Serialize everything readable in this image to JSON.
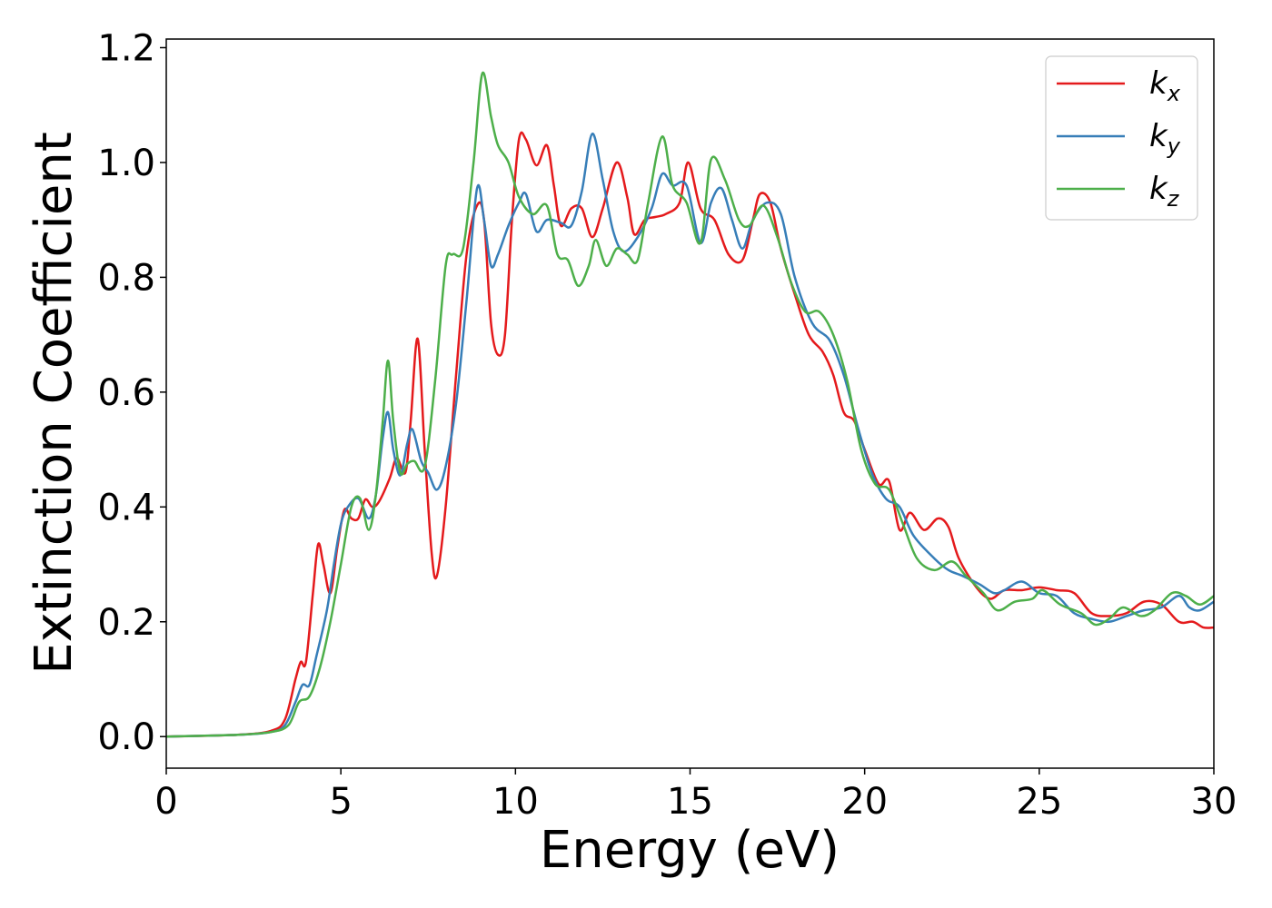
{
  "chart_data": {
    "type": "line",
    "title": "",
    "xlabel": "Energy (eV)",
    "ylabel": "Extinction Coefficient",
    "xlim": [
      0,
      30
    ],
    "ylim": [
      -0.055,
      1.215
    ],
    "xticks": [
      0,
      5,
      10,
      15,
      20,
      25,
      30
    ],
    "yticks": [
      0.0,
      0.2,
      0.4,
      0.6,
      0.8,
      1.0,
      1.2
    ],
    "xtick_labels": [
      "0",
      "5",
      "10",
      "15",
      "20",
      "25",
      "30"
    ],
    "ytick_labels": [
      "0.0",
      "0.2",
      "0.4",
      "0.6",
      "0.8",
      "1.0",
      "1.2"
    ],
    "grid": false,
    "legend_position": "top-right",
    "series": [
      {
        "name": "k_x",
        "legend_main": "k",
        "legend_sub": "x",
        "color": "#e41a1c",
        "points": [
          [
            0,
            0
          ],
          [
            2,
            0.003
          ],
          [
            3,
            0.01
          ],
          [
            3.4,
            0.03
          ],
          [
            3.7,
            0.1
          ],
          [
            3.85,
            0.13
          ],
          [
            4.0,
            0.13
          ],
          [
            4.2,
            0.25
          ],
          [
            4.35,
            0.335
          ],
          [
            4.5,
            0.3
          ],
          [
            4.7,
            0.25
          ],
          [
            4.9,
            0.33
          ],
          [
            5.1,
            0.395
          ],
          [
            5.3,
            0.38
          ],
          [
            5.5,
            0.38
          ],
          [
            5.7,
            0.413
          ],
          [
            5.9,
            0.4
          ],
          [
            6.1,
            0.41
          ],
          [
            6.4,
            0.45
          ],
          [
            6.6,
            0.485
          ],
          [
            6.85,
            0.46
          ],
          [
            7.0,
            0.55
          ],
          [
            7.2,
            0.693
          ],
          [
            7.4,
            0.5
          ],
          [
            7.6,
            0.32
          ],
          [
            7.75,
            0.28
          ],
          [
            8.0,
            0.4
          ],
          [
            8.3,
            0.63
          ],
          [
            8.6,
            0.84
          ],
          [
            8.9,
            0.925
          ],
          [
            9.1,
            0.9
          ],
          [
            9.3,
            0.72
          ],
          [
            9.5,
            0.665
          ],
          [
            9.7,
            0.7
          ],
          [
            9.9,
            0.9
          ],
          [
            10.1,
            1.04
          ],
          [
            10.3,
            1.04
          ],
          [
            10.6,
            0.995
          ],
          [
            10.9,
            1.03
          ],
          [
            11.1,
            0.96
          ],
          [
            11.3,
            0.89
          ],
          [
            11.6,
            0.92
          ],
          [
            11.9,
            0.92
          ],
          [
            12.2,
            0.87
          ],
          [
            12.5,
            0.92
          ],
          [
            12.9,
            1.0
          ],
          [
            13.2,
            0.94
          ],
          [
            13.4,
            0.875
          ],
          [
            13.7,
            0.9
          ],
          [
            14.0,
            0.905
          ],
          [
            14.3,
            0.91
          ],
          [
            14.7,
            0.93
          ],
          [
            14.95,
            1.0
          ],
          [
            15.3,
            0.92
          ],
          [
            15.7,
            0.9
          ],
          [
            16.1,
            0.84
          ],
          [
            16.5,
            0.83
          ],
          [
            16.8,
            0.9
          ],
          [
            17.0,
            0.945
          ],
          [
            17.3,
            0.93
          ],
          [
            17.6,
            0.85
          ],
          [
            18.0,
            0.77
          ],
          [
            18.4,
            0.7
          ],
          [
            18.8,
            0.67
          ],
          [
            19.1,
            0.63
          ],
          [
            19.4,
            0.565
          ],
          [
            19.7,
            0.55
          ],
          [
            20.0,
            0.5
          ],
          [
            20.4,
            0.44
          ],
          [
            20.7,
            0.445
          ],
          [
            21.0,
            0.36
          ],
          [
            21.3,
            0.39
          ],
          [
            21.7,
            0.36
          ],
          [
            22.1,
            0.38
          ],
          [
            22.4,
            0.365
          ],
          [
            22.7,
            0.31
          ],
          [
            23.2,
            0.26
          ],
          [
            23.6,
            0.24
          ],
          [
            24.0,
            0.255
          ],
          [
            24.5,
            0.255
          ],
          [
            25.0,
            0.26
          ],
          [
            25.5,
            0.255
          ],
          [
            26.0,
            0.25
          ],
          [
            26.5,
            0.215
          ],
          [
            27.0,
            0.21
          ],
          [
            27.5,
            0.215
          ],
          [
            28.0,
            0.235
          ],
          [
            28.5,
            0.23
          ],
          [
            29.0,
            0.2
          ],
          [
            29.4,
            0.2
          ],
          [
            29.7,
            0.19
          ],
          [
            30,
            0.19
          ]
        ]
      },
      {
        "name": "k_y",
        "legend_main": "k",
        "legend_sub": "y",
        "color": "#377eb8",
        "points": [
          [
            0,
            0
          ],
          [
            2,
            0.003
          ],
          [
            3,
            0.008
          ],
          [
            3.4,
            0.02
          ],
          [
            3.7,
            0.06
          ],
          [
            3.9,
            0.09
          ],
          [
            4.1,
            0.09
          ],
          [
            4.3,
            0.14
          ],
          [
            4.6,
            0.22
          ],
          [
            4.8,
            0.3
          ],
          [
            5.0,
            0.37
          ],
          [
            5.2,
            0.4
          ],
          [
            5.5,
            0.415
          ],
          [
            5.8,
            0.38
          ],
          [
            6.0,
            0.42
          ],
          [
            6.2,
            0.52
          ],
          [
            6.35,
            0.565
          ],
          [
            6.5,
            0.5
          ],
          [
            6.7,
            0.455
          ],
          [
            6.9,
            0.51
          ],
          [
            7.05,
            0.535
          ],
          [
            7.3,
            0.48
          ],
          [
            7.5,
            0.46
          ],
          [
            7.75,
            0.43
          ],
          [
            8.0,
            0.47
          ],
          [
            8.3,
            0.58
          ],
          [
            8.6,
            0.76
          ],
          [
            8.9,
            0.955
          ],
          [
            9.1,
            0.9
          ],
          [
            9.3,
            0.82
          ],
          [
            9.5,
            0.84
          ],
          [
            9.8,
            0.89
          ],
          [
            10.1,
            0.93
          ],
          [
            10.3,
            0.945
          ],
          [
            10.6,
            0.88
          ],
          [
            10.9,
            0.9
          ],
          [
            11.3,
            0.895
          ],
          [
            11.6,
            0.89
          ],
          [
            11.9,
            0.95
          ],
          [
            12.2,
            1.05
          ],
          [
            12.5,
            0.97
          ],
          [
            12.8,
            0.88
          ],
          [
            13.1,
            0.845
          ],
          [
            13.5,
            0.87
          ],
          [
            13.9,
            0.92
          ],
          [
            14.2,
            0.98
          ],
          [
            14.5,
            0.96
          ],
          [
            14.9,
            0.96
          ],
          [
            15.3,
            0.86
          ],
          [
            15.6,
            0.93
          ],
          [
            15.9,
            0.955
          ],
          [
            16.2,
            0.9
          ],
          [
            16.5,
            0.85
          ],
          [
            16.8,
            0.9
          ],
          [
            17.2,
            0.93
          ],
          [
            17.6,
            0.91
          ],
          [
            18.0,
            0.8
          ],
          [
            18.5,
            0.72
          ],
          [
            19.0,
            0.69
          ],
          [
            19.4,
            0.63
          ],
          [
            19.8,
            0.54
          ],
          [
            20.2,
            0.46
          ],
          [
            20.6,
            0.415
          ],
          [
            21.0,
            0.4
          ],
          [
            21.4,
            0.35
          ],
          [
            22.0,
            0.31
          ],
          [
            22.4,
            0.29
          ],
          [
            22.8,
            0.28
          ],
          [
            23.3,
            0.265
          ],
          [
            23.7,
            0.25
          ],
          [
            24.0,
            0.255
          ],
          [
            24.5,
            0.27
          ],
          [
            25.0,
            0.25
          ],
          [
            25.5,
            0.245
          ],
          [
            26.0,
            0.215
          ],
          [
            26.5,
            0.205
          ],
          [
            27.0,
            0.2
          ],
          [
            27.5,
            0.21
          ],
          [
            28.0,
            0.22
          ],
          [
            28.5,
            0.225
          ],
          [
            29.0,
            0.245
          ],
          [
            29.3,
            0.225
          ],
          [
            29.6,
            0.22
          ],
          [
            30,
            0.235
          ]
        ]
      },
      {
        "name": "k_z",
        "legend_main": "k",
        "legend_sub": "z",
        "color": "#4daf4a",
        "points": [
          [
            0,
            0
          ],
          [
            2,
            0.003
          ],
          [
            3,
            0.008
          ],
          [
            3.5,
            0.02
          ],
          [
            3.8,
            0.06
          ],
          [
            4.1,
            0.07
          ],
          [
            4.4,
            0.12
          ],
          [
            4.7,
            0.2
          ],
          [
            5.0,
            0.3
          ],
          [
            5.3,
            0.4
          ],
          [
            5.55,
            0.415
          ],
          [
            5.8,
            0.36
          ],
          [
            6.0,
            0.42
          ],
          [
            6.2,
            0.55
          ],
          [
            6.35,
            0.655
          ],
          [
            6.5,
            0.55
          ],
          [
            6.7,
            0.46
          ],
          [
            6.9,
            0.475
          ],
          [
            7.1,
            0.48
          ],
          [
            7.4,
            0.47
          ],
          [
            7.7,
            0.62
          ],
          [
            8.0,
            0.82
          ],
          [
            8.2,
            0.84
          ],
          [
            8.5,
            0.85
          ],
          [
            8.8,
            1.0
          ],
          [
            9.05,
            1.155
          ],
          [
            9.3,
            1.08
          ],
          [
            9.5,
            1.03
          ],
          [
            9.8,
            1.0
          ],
          [
            10.1,
            0.94
          ],
          [
            10.5,
            0.91
          ],
          [
            10.9,
            0.925
          ],
          [
            11.2,
            0.84
          ],
          [
            11.5,
            0.83
          ],
          [
            11.8,
            0.785
          ],
          [
            12.1,
            0.82
          ],
          [
            12.3,
            0.865
          ],
          [
            12.6,
            0.82
          ],
          [
            12.9,
            0.85
          ],
          [
            13.2,
            0.84
          ],
          [
            13.5,
            0.83
          ],
          [
            13.8,
            0.93
          ],
          [
            14.2,
            1.045
          ],
          [
            14.5,
            0.96
          ],
          [
            14.9,
            0.93
          ],
          [
            15.3,
            0.86
          ],
          [
            15.6,
            1.005
          ],
          [
            16.0,
            0.97
          ],
          [
            16.4,
            0.9
          ],
          [
            16.7,
            0.89
          ],
          [
            17.1,
            0.925
          ],
          [
            17.5,
            0.87
          ],
          [
            17.9,
            0.79
          ],
          [
            18.3,
            0.74
          ],
          [
            18.7,
            0.74
          ],
          [
            19.1,
            0.7
          ],
          [
            19.5,
            0.62
          ],
          [
            19.9,
            0.5
          ],
          [
            20.3,
            0.44
          ],
          [
            20.7,
            0.43
          ],
          [
            21.1,
            0.37
          ],
          [
            21.5,
            0.31
          ],
          [
            22.0,
            0.29
          ],
          [
            22.5,
            0.305
          ],
          [
            22.9,
            0.28
          ],
          [
            23.4,
            0.25
          ],
          [
            23.8,
            0.22
          ],
          [
            24.3,
            0.235
          ],
          [
            24.8,
            0.24
          ],
          [
            25.1,
            0.255
          ],
          [
            25.6,
            0.23
          ],
          [
            26.2,
            0.215
          ],
          [
            26.6,
            0.195
          ],
          [
            27.0,
            0.205
          ],
          [
            27.4,
            0.225
          ],
          [
            27.9,
            0.21
          ],
          [
            28.3,
            0.22
          ],
          [
            28.8,
            0.25
          ],
          [
            29.2,
            0.245
          ],
          [
            29.6,
            0.23
          ],
          [
            30,
            0.245
          ]
        ]
      }
    ]
  }
}
